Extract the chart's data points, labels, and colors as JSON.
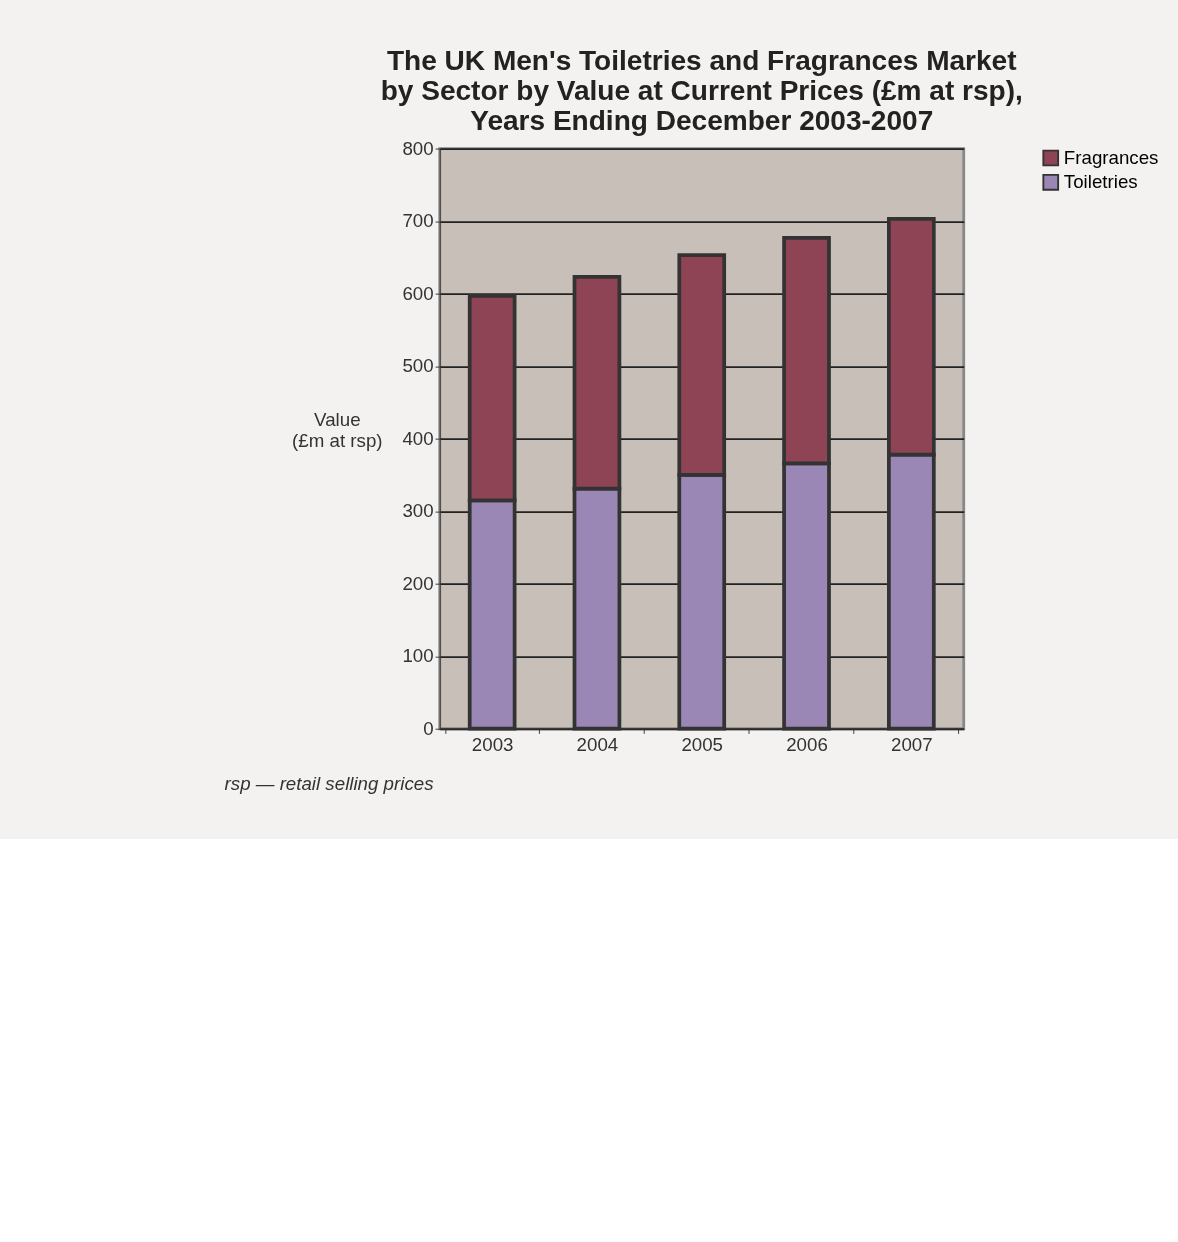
{
  "chart_data": {
    "type": "bar",
    "title": "The UK Men's Toiletries and Fragrances Market\nby Sector by Value at Current Prices (£m at rsp),\nYears Ending December 2003-2007",
    "ylabel": "Value\n(£m at rsp)",
    "categories": [
      "2003",
      "2004",
      "2005",
      "2006",
      "2007"
    ],
    "stacked": true,
    "series": [
      {
        "name": "Toiletries",
        "color": "#9b87b5",
        "values": [
          315,
          331,
          350,
          366,
          378
        ]
      },
      {
        "name": "Fragrances",
        "color": "#8e4455",
        "values": [
          282,
          292,
          303,
          311,
          325
        ]
      }
    ],
    "ylim": [
      0,
      800
    ],
    "yticks": [
      0,
      100,
      200,
      300,
      400,
      500,
      600,
      700,
      800
    ],
    "grid": "y",
    "legend": "right",
    "annotations": [
      "rsp — retail selling prices"
    ]
  }
}
